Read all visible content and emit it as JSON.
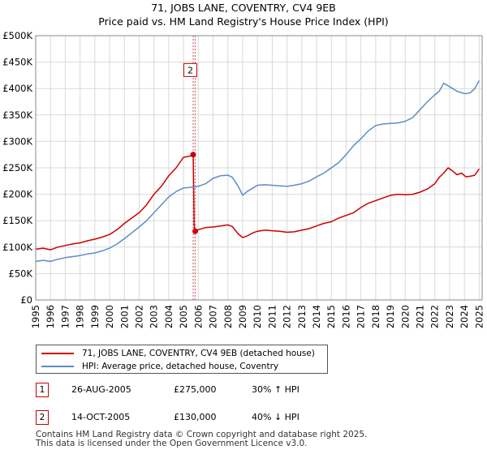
{
  "header": {
    "title": "71, JOBS LANE, COVENTRY, CV4 9EB",
    "subtitle": "Price paid vs. HM Land Registry's House Price Index (HPI)"
  },
  "legend": {
    "items": [
      {
        "label": "71, JOBS LANE, COVENTRY, CV4 9EB (detached house)",
        "color": "#cc0000"
      },
      {
        "label": "HPI: Average price, detached house, Coventry",
        "color": "#5b8dc8"
      }
    ]
  },
  "sales": [
    {
      "num": "1",
      "date": "26-AUG-2005",
      "price": "£275,000",
      "hpi": "30% ↑ HPI"
    },
    {
      "num": "2",
      "date": "14-OCT-2005",
      "price": "£130,000",
      "hpi": "40% ↓ HPI"
    }
  ],
  "footer": {
    "line1": "Contains HM Land Registry data © Crown copyright and database right 2025.",
    "line2": "This data is licensed under the Open Government Licence v3.0."
  },
  "chart_data": {
    "type": "line",
    "title": "71, JOBS LANE, COVENTRY, CV4 9EB",
    "subtitle": "Price paid vs. HM Land Registry's House Price Index (HPI)",
    "xlabel": "",
    "ylabel": "",
    "xlim": [
      1995,
      2025.2
    ],
    "ylim": [
      0,
      500000
    ],
    "grid": true,
    "legend_position": "bottom",
    "y_ticks": [
      {
        "value": 0,
        "label": "£0"
      },
      {
        "value": 50000,
        "label": "£50K"
      },
      {
        "value": 100000,
        "label": "£100K"
      },
      {
        "value": 150000,
        "label": "£150K"
      },
      {
        "value": 200000,
        "label": "£200K"
      },
      {
        "value": 250000,
        "label": "£250K"
      },
      {
        "value": 300000,
        "label": "£300K"
      },
      {
        "value": 350000,
        "label": "£350K"
      },
      {
        "value": 400000,
        "label": "£400K"
      },
      {
        "value": 450000,
        "label": "£450K"
      },
      {
        "value": 500000,
        "label": "£500K"
      }
    ],
    "x_ticks": [
      "1995",
      "1996",
      "1997",
      "1998",
      "1999",
      "2000",
      "2001",
      "2002",
      "2003",
      "2004",
      "2005",
      "2006",
      "2007",
      "2008",
      "2009",
      "2010",
      "2011",
      "2012",
      "2013",
      "2014",
      "2015",
      "2016",
      "2017",
      "2018",
      "2019",
      "2020",
      "2021",
      "2022",
      "2023",
      "2024",
      "2025"
    ],
    "sale_markers": [
      {
        "label": "1",
        "x": 2005.65,
        "y": 275000
      },
      {
        "label": "2",
        "x": 2005.79,
        "y": 130000
      }
    ],
    "marker_label": {
      "text": "2",
      "y": 435000
    },
    "series": [
      {
        "name": "71, JOBS LANE, COVENTRY, CV4 9EB (detached house)",
        "color": "#cc0000",
        "x": [
          1995.0,
          1995.5,
          1996.0,
          1996.5,
          1997.0,
          1997.5,
          1998.0,
          1998.5,
          1999.0,
          1999.5,
          2000.0,
          2000.5,
          2001.0,
          2001.5,
          2002.0,
          2002.5,
          2003.0,
          2003.5,
          2004.0,
          2004.5,
          2005.0,
          2005.4,
          2005.65,
          2005.72,
          2005.79,
          2006.0,
          2006.5,
          2007.0,
          2007.5,
          2008.0,
          2008.3,
          2008.7,
          2009.0,
          2009.3,
          2009.7,
          2010.0,
          2010.5,
          2011.0,
          2011.5,
          2012.0,
          2012.5,
          2013.0,
          2013.5,
          2014.0,
          2014.5,
          2015.0,
          2015.5,
          2016.0,
          2016.5,
          2017.0,
          2017.5,
          2018.0,
          2018.5,
          2019.0,
          2019.5,
          2020.0,
          2020.5,
          2021.0,
          2021.5,
          2022.0,
          2022.3,
          2022.6,
          2022.9,
          2023.2,
          2023.5,
          2023.8,
          2024.1,
          2024.4,
          2024.7,
          2025.0
        ],
        "values": [
          96000,
          98000,
          95000,
          100000,
          103000,
          106000,
          108000,
          112000,
          115000,
          119000,
          124000,
          133000,
          145000,
          155000,
          165000,
          180000,
          200000,
          215000,
          235000,
          250000,
          270000,
          272000,
          275000,
          140000,
          130000,
          133000,
          137000,
          138000,
          140000,
          142000,
          139000,
          125000,
          118000,
          121000,
          127000,
          130000,
          132000,
          131000,
          130000,
          128000,
          129000,
          132000,
          135000,
          140000,
          145000,
          148000,
          155000,
          160000,
          165000,
          175000,
          183000,
          188000,
          193000,
          198000,
          200000,
          199000,
          200000,
          204000,
          210000,
          220000,
          232000,
          240000,
          250000,
          244000,
          237000,
          240000,
          233000,
          234000,
          236000,
          248000
        ]
      },
      {
        "name": "HPI: Average price, detached house, Coventry",
        "color": "#5b8dc8",
        "x": [
          1995.0,
          1995.5,
          1996.0,
          1996.5,
          1997.0,
          1997.5,
          1998.0,
          1998.5,
          1999.0,
          1999.5,
          2000.0,
          2000.5,
          2001.0,
          2001.5,
          2002.0,
          2002.5,
          2003.0,
          2003.5,
          2004.0,
          2004.5,
          2005.0,
          2005.5,
          2006.0,
          2006.5,
          2007.0,
          2007.5,
          2008.0,
          2008.3,
          2008.7,
          2009.0,
          2009.3,
          2009.7,
          2010.0,
          2010.5,
          2011.0,
          2011.5,
          2012.0,
          2012.5,
          2013.0,
          2013.5,
          2014.0,
          2014.5,
          2015.0,
          2015.5,
          2016.0,
          2016.5,
          2017.0,
          2017.5,
          2018.0,
          2018.5,
          2019.0,
          2019.5,
          2020.0,
          2020.5,
          2021.0,
          2021.5,
          2022.0,
          2022.3,
          2022.6,
          2022.9,
          2023.2,
          2023.5,
          2023.8,
          2024.1,
          2024.4,
          2024.7,
          2025.0
        ],
        "values": [
          73000,
          75000,
          73000,
          77000,
          80000,
          82000,
          84000,
          87000,
          89000,
          93000,
          98000,
          106000,
          116000,
          127000,
          138000,
          150000,
          165000,
          180000,
          195000,
          205000,
          212000,
          213000,
          215000,
          220000,
          230000,
          235000,
          236000,
          232000,
          215000,
          198000,
          205000,
          212000,
          217000,
          218000,
          217000,
          216000,
          215000,
          217000,
          220000,
          225000,
          233000,
          240000,
          250000,
          260000,
          275000,
          292000,
          305000,
          320000,
          330000,
          333000,
          334000,
          335000,
          338000,
          345000,
          360000,
          375000,
          388000,
          395000,
          410000,
          405000,
          400000,
          395000,
          392000,
          390000,
          392000,
          400000,
          415000
        ]
      }
    ]
  }
}
